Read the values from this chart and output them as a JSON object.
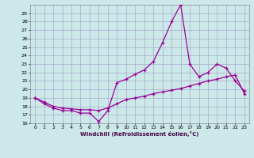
{
  "xlabel": "Windchill (Refroidissement éolien,°C)",
  "bg_color": "#cce8e8",
  "grid_color": "#aaaacc",
  "line_color": "#990099",
  "xlim": [
    -0.5,
    23.5
  ],
  "ylim": [
    16,
    30
  ],
  "yticks": [
    16,
    17,
    18,
    19,
    20,
    21,
    22,
    23,
    24,
    25,
    26,
    27,
    28,
    29
  ],
  "xticks": [
    0,
    1,
    2,
    3,
    4,
    5,
    6,
    7,
    8,
    9,
    10,
    11,
    12,
    13,
    14,
    15,
    16,
    17,
    18,
    19,
    20,
    21,
    22,
    23
  ],
  "line1_x": [
    0,
    1,
    2,
    3,
    4,
    5,
    6,
    7,
    8,
    9,
    10,
    11,
    12,
    13,
    14,
    15,
    16,
    17,
    18,
    19,
    20,
    21,
    22,
    23
  ],
  "line1_y": [
    19.0,
    18.3,
    17.8,
    17.5,
    17.5,
    17.2,
    17.2,
    16.2,
    17.5,
    20.8,
    21.2,
    21.8,
    22.3,
    23.3,
    25.5,
    28.0,
    30.0,
    23.0,
    21.5,
    22.0,
    23.0,
    22.5,
    21.0,
    19.8
  ],
  "line2_x": [
    0,
    1,
    2,
    3,
    4,
    5,
    6,
    7,
    8,
    9,
    10,
    11,
    12,
    13,
    14,
    15,
    16,
    17,
    18,
    19,
    20,
    21,
    22,
    23
  ],
  "line2_y": [
    19.0,
    18.5,
    18.0,
    17.8,
    17.7,
    17.6,
    17.6,
    17.5,
    17.8,
    18.3,
    18.8,
    19.0,
    19.2,
    19.5,
    19.7,
    19.9,
    20.1,
    20.4,
    20.7,
    21.0,
    21.2,
    21.5,
    21.7,
    19.5
  ]
}
